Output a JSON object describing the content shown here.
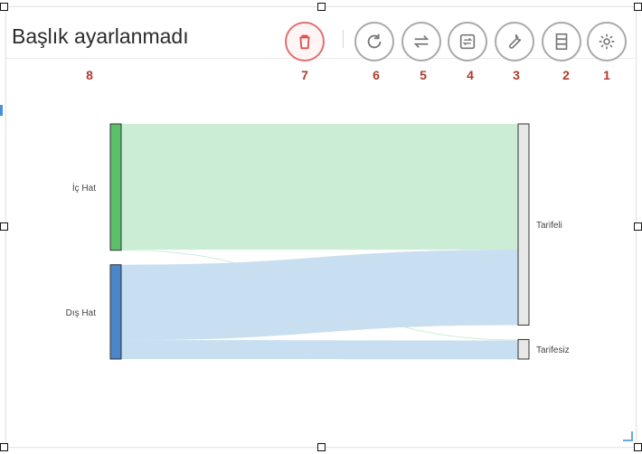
{
  "widget": {
    "title": "Başlık ayarlanmadı"
  },
  "toolbar": {
    "buttons": [
      {
        "id": "delete",
        "icon": "trash-icon",
        "number": "7",
        "color": "#e05050"
      },
      {
        "id": "refresh",
        "icon": "refresh-icon",
        "number": "6"
      },
      {
        "id": "swap",
        "icon": "swap-arrows-icon",
        "number": "5"
      },
      {
        "id": "convert",
        "icon": "convert-icon",
        "number": "4"
      },
      {
        "id": "tools",
        "icon": "wrench-icon",
        "number": "3"
      },
      {
        "id": "layout",
        "icon": "rows-icon",
        "number": "2"
      },
      {
        "id": "settings",
        "icon": "gear-icon",
        "number": "1"
      }
    ],
    "title_number": "8"
  },
  "chart_data": {
    "type": "sankey",
    "nodes": [
      {
        "id": "ic_hat",
        "label": "İç Hat",
        "color": "#5cbf6a"
      },
      {
        "id": "dis_hat",
        "label": "Dış Hat",
        "color": "#4a86c8"
      },
      {
        "id": "tarifeli",
        "label": "Tarifeli",
        "color": "#e8e8e8"
      },
      {
        "id": "tarifesiz",
        "label": "Tarifesiz",
        "color": "#e8e8e8"
      }
    ],
    "links": [
      {
        "source": "ic_hat",
        "target": "tarifeli",
        "value": 100,
        "color": "#c9ecd3"
      },
      {
        "source": "ic_hat",
        "target": "tarifesiz",
        "value": 0.5,
        "color": "#c9ecd3"
      },
      {
        "source": "dis_hat",
        "target": "tarifeli",
        "value": 60,
        "color": "#c5dcf0"
      },
      {
        "source": "dis_hat",
        "target": "tarifesiz",
        "value": 15,
        "color": "#c5dcf0"
      }
    ]
  }
}
